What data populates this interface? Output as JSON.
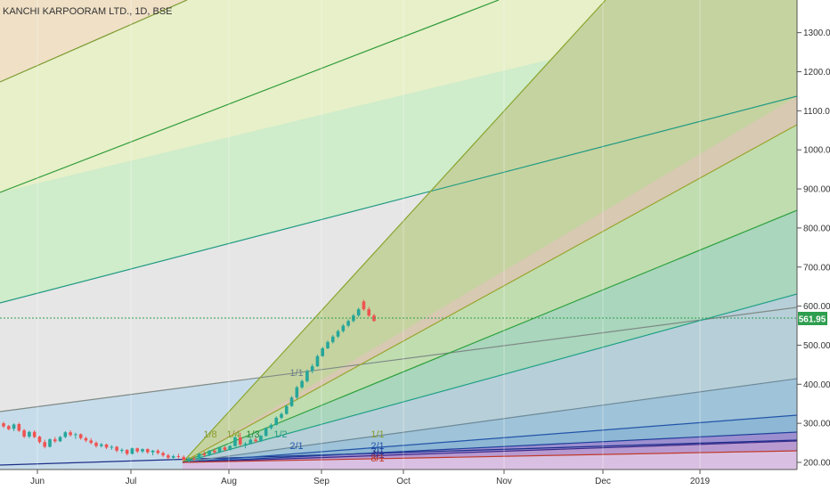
{
  "chart_data": {
    "type": "gann_fan_candlestick",
    "title": "KANCHI KARPOORAM LTD., 1D, BSE",
    "last_price": "561.95",
    "x_ticks": [
      "Jun",
      "Jul",
      "Aug",
      "Sep",
      "Oct",
      "Nov",
      "Dec",
      "2019"
    ],
    "y_ticks": [
      "1300.00",
      "1200.00",
      "1100.00",
      "1000.00",
      "900.00",
      "800.00",
      "700.00",
      "600.00",
      "500.00",
      "400.00",
      "300.00",
      "200.00"
    ],
    "ylim": [
      185,
      1370
    ],
    "colors": {
      "last_price_line": "#2e9e4f",
      "up_candle": "#26a69a",
      "down_candle": "#ef5350"
    },
    "fan_labels": [
      "1/8",
      "1/4",
      "1/3",
      "1/2",
      "1/1",
      "1/1",
      "2/1",
      "2/1",
      "3/1",
      "4/1",
      "8/1"
    ],
    "candles_ohlc_approx": [
      [
        300,
        304,
        288,
        292
      ],
      [
        293,
        296,
        282,
        285
      ],
      [
        286,
        300,
        280,
        297
      ],
      [
        298,
        302,
        278,
        281
      ],
      [
        282,
        286,
        262,
        266
      ],
      [
        266,
        281,
        262,
        278
      ],
      [
        278,
        282,
        262,
        265
      ],
      [
        266,
        268,
        248,
        252
      ],
      [
        252,
        258,
        236,
        240
      ],
      [
        240,
        262,
        238,
        259
      ],
      [
        259,
        265,
        250,
        254
      ],
      [
        254,
        268,
        252,
        265
      ],
      [
        265,
        280,
        262,
        277
      ],
      [
        277,
        282,
        266,
        270
      ],
      [
        270,
        276,
        260,
        272
      ],
      [
        272,
        274,
        258,
        262
      ],
      [
        262,
        266,
        252,
        256
      ],
      [
        256,
        262,
        246,
        250
      ],
      [
        250,
        254,
        238,
        242
      ],
      [
        242,
        250,
        238,
        246
      ],
      [
        246,
        248,
        234,
        238
      ],
      [
        238,
        244,
        232,
        240
      ],
      [
        240,
        242,
        226,
        230
      ],
      [
        230,
        236,
        224,
        232
      ],
      [
        232,
        234,
        218,
        222
      ],
      [
        222,
        238,
        220,
        236
      ],
      [
        236,
        238,
        224,
        228
      ],
      [
        228,
        236,
        224,
        234
      ],
      [
        234,
        236,
        222,
        226
      ],
      [
        226,
        232,
        218,
        230
      ],
      [
        230,
        234,
        220,
        224
      ],
      [
        224,
        228,
        214,
        218
      ],
      [
        218,
        222,
        208,
        212
      ],
      [
        212,
        220,
        206,
        216
      ],
      [
        216,
        222,
        210,
        214
      ],
      [
        214,
        218,
        204,
        206
      ],
      [
        206,
        214,
        200,
        210
      ],
      [
        210,
        216,
        204,
        208
      ],
      [
        208,
        224,
        206,
        222
      ],
      [
        222,
        228,
        214,
        218
      ],
      [
        218,
        232,
        216,
        230
      ],
      [
        230,
        236,
        222,
        226
      ],
      [
        226,
        240,
        224,
        238
      ],
      [
        238,
        242,
        228,
        232
      ],
      [
        232,
        244,
        230,
        242
      ],
      [
        242,
        268,
        240,
        264
      ],
      [
        264,
        276,
        240,
        246
      ],
      [
        246,
        252,
        236,
        248
      ],
      [
        248,
        262,
        246,
        258
      ],
      [
        258,
        264,
        250,
        254
      ],
      [
        254,
        270,
        252,
        268
      ],
      [
        268,
        290,
        266,
        288
      ],
      [
        288,
        300,
        284,
        296
      ],
      [
        296,
        318,
        294,
        314
      ],
      [
        314,
        328,
        310,
        324
      ],
      [
        324,
        348,
        322,
        344
      ],
      [
        344,
        370,
        342,
        366
      ],
      [
        366,
        396,
        362,
        392
      ],
      [
        392,
        412,
        388,
        408
      ],
      [
        408,
        438,
        404,
        434
      ],
      [
        434,
        452,
        428,
        446
      ],
      [
        446,
        476,
        444,
        472
      ],
      [
        472,
        496,
        470,
        492
      ],
      [
        492,
        512,
        490,
        508
      ],
      [
        508,
        526,
        504,
        522
      ],
      [
        522,
        540,
        518,
        536
      ],
      [
        536,
        554,
        532,
        550
      ],
      [
        550,
        566,
        546,
        562
      ],
      [
        562,
        580,
        558,
        576
      ],
      [
        576,
        596,
        572,
        592
      ],
      [
        612,
        616,
        588,
        592
      ],
      [
        592,
        598,
        572,
        576
      ],
      [
        576,
        580,
        560,
        562
      ]
    ]
  }
}
